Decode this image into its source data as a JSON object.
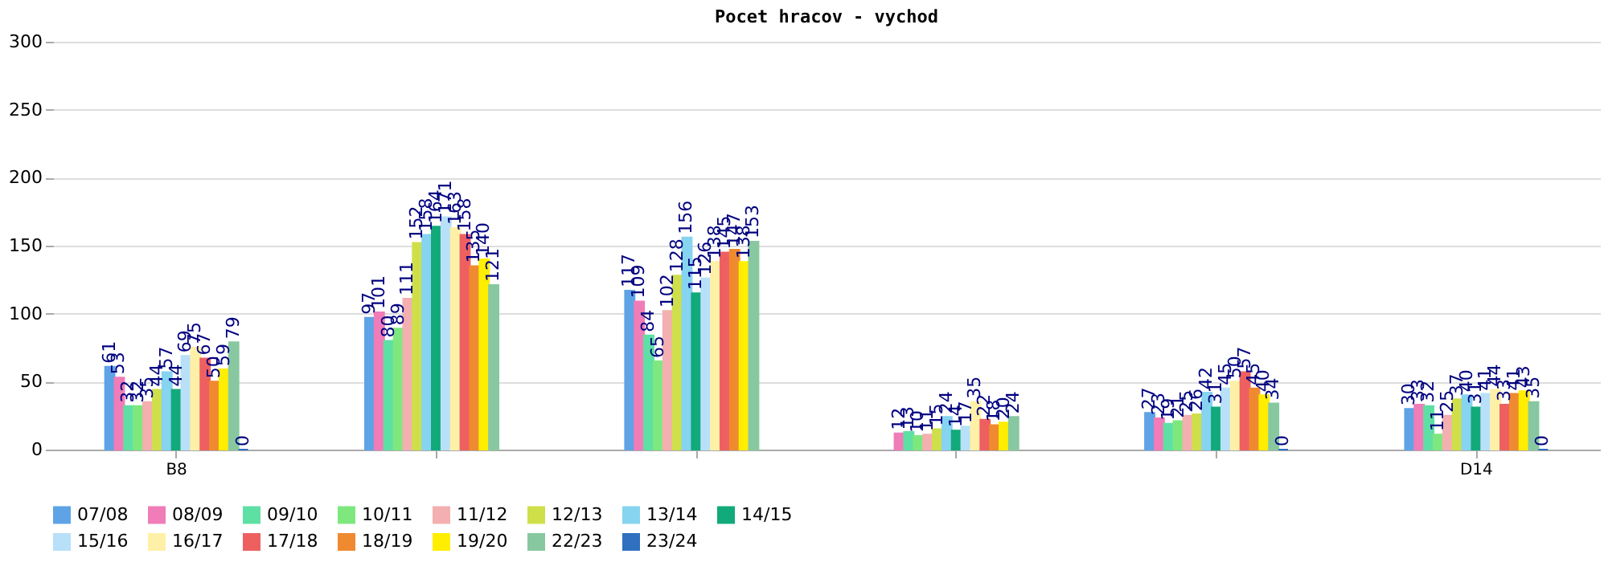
{
  "chart_data": {
    "type": "bar",
    "title": "Pocet hracov - vychod",
    "categories": [
      "B8",
      null,
      null,
      null,
      null,
      "D14"
    ],
    "ylim": [
      0,
      300
    ],
    "yticks": [
      0,
      50,
      100,
      150,
      200,
      250,
      300
    ],
    "grid": "y",
    "legend": "bottom",
    "data_labels": true,
    "series": [
      {
        "name": "07/08",
        "color": "#5ea3e5",
        "values": [
          61,
          97,
          117,
          null,
          27,
          30
        ]
      },
      {
        "name": "08/09",
        "color": "#f07cb8",
        "values": [
          53,
          101,
          109,
          12,
          23,
          33
        ]
      },
      {
        "name": "09/10",
        "color": "#5ee0a5",
        "values": [
          32,
          80,
          84,
          13,
          19,
          32
        ]
      },
      {
        "name": "10/11",
        "color": "#7ee87e",
        "values": [
          32,
          89,
          65,
          10,
          21,
          11
        ]
      },
      {
        "name": "11/12",
        "color": "#f4b0b0",
        "values": [
          35,
          111,
          102,
          11,
          25,
          25
        ]
      },
      {
        "name": "12/13",
        "color": "#cfdf4a",
        "values": [
          44,
          152,
          128,
          15,
          26,
          37
        ]
      },
      {
        "name": "13/14",
        "color": "#86d4f0",
        "values": [
          57,
          158,
          156,
          24,
          42,
          40
        ]
      },
      {
        "name": "14/15",
        "color": "#12aa7a",
        "values": [
          44,
          164,
          115,
          14,
          31,
          31
        ]
      },
      {
        "name": "15/16",
        "color": "#b8e0f8",
        "values": [
          69,
          171,
          126,
          17,
          45,
          41
        ]
      },
      {
        "name": "16/17",
        "color": "#fff0a8",
        "values": [
          75,
          163,
          138,
          35,
          50,
          44
        ]
      },
      {
        "name": "17/18",
        "color": "#ee6060",
        "values": [
          67,
          158,
          145,
          22,
          57,
          33
        ]
      },
      {
        "name": "18/19",
        "color": "#f08a30",
        "values": [
          50,
          135,
          147,
          18,
          45,
          41
        ]
      },
      {
        "name": "19/20",
        "color": "#ffee00",
        "values": [
          59,
          140,
          138,
          20,
          40,
          43
        ]
      },
      {
        "name": "22/23",
        "color": "#88c8a0",
        "values": [
          79,
          121,
          153,
          24,
          34,
          35
        ]
      },
      {
        "name": "23/24",
        "color": "#3070c0",
        "values": [
          0,
          null,
          null,
          null,
          0,
          0
        ]
      }
    ]
  }
}
